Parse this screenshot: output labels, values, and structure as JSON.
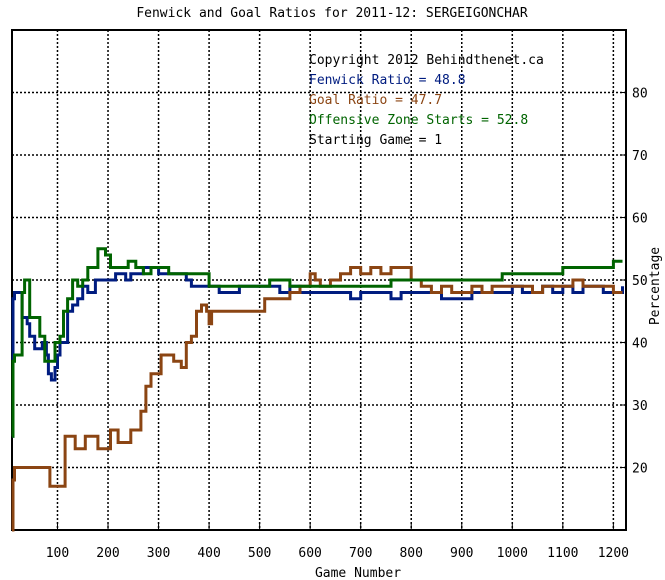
{
  "chart_data": {
    "type": "line",
    "title": "Fenwick and Goal Ratios for 2011-12: SERGEIGONCHAR",
    "xlabel": "Game Number",
    "ylabel": "Percentage",
    "xlim": [
      10,
      1225
    ],
    "ylim": [
      10,
      90
    ],
    "x_ticks": [
      100,
      200,
      300,
      400,
      500,
      600,
      700,
      800,
      900,
      1000,
      1100,
      1200
    ],
    "y_ticks": [
      20,
      30,
      40,
      50,
      60,
      70,
      80
    ],
    "grid": true,
    "annotations": [
      {
        "text": "Copyright 2012 Behindthenet.ca",
        "color": "#000000"
      },
      {
        "text": "Fenwick Ratio = 48.8",
        "color": "#001c80"
      },
      {
        "text": "Goal Ratio = 47.7",
        "color": "#8b4513"
      },
      {
        "text": "Offensive Zone Starts = 52.8",
        "color": "#006400"
      },
      {
        "text": "Starting Game = 1",
        "color": "#000000"
      }
    ],
    "series": [
      {
        "name": "Fenwick Ratio",
        "color": "#001c80",
        "points": [
          [
            10,
            25
          ],
          [
            12,
            47
          ],
          [
            15,
            48
          ],
          [
            25,
            48
          ],
          [
            30,
            44
          ],
          [
            40,
            43
          ],
          [
            45,
            41
          ],
          [
            55,
            39
          ],
          [
            65,
            39
          ],
          [
            70,
            40
          ],
          [
            78,
            38
          ],
          [
            82,
            35
          ],
          [
            88,
            34
          ],
          [
            95,
            36
          ],
          [
            100,
            38
          ],
          [
            105,
            40
          ],
          [
            112,
            40
          ],
          [
            120,
            45
          ],
          [
            130,
            46
          ],
          [
            140,
            47
          ],
          [
            150,
            49
          ],
          [
            160,
            48
          ],
          [
            170,
            48
          ],
          [
            175,
            50
          ],
          [
            185,
            50
          ],
          [
            195,
            50
          ],
          [
            205,
            50
          ],
          [
            215,
            51
          ],
          [
            225,
            51
          ],
          [
            235,
            50
          ],
          [
            245,
            51
          ],
          [
            260,
            51
          ],
          [
            270,
            52
          ],
          [
            285,
            52
          ],
          [
            300,
            51
          ],
          [
            320,
            51
          ],
          [
            340,
            51
          ],
          [
            355,
            50
          ],
          [
            365,
            49
          ],
          [
            380,
            49
          ],
          [
            400,
            49
          ],
          [
            420,
            48
          ],
          [
            440,
            48
          ],
          [
            460,
            49
          ],
          [
            480,
            49
          ],
          [
            500,
            49
          ],
          [
            520,
            49
          ],
          [
            540,
            48
          ],
          [
            560,
            49
          ],
          [
            580,
            48
          ],
          [
            600,
            48
          ],
          [
            620,
            48
          ],
          [
            640,
            48
          ],
          [
            660,
            48
          ],
          [
            680,
            47
          ],
          [
            700,
            48
          ],
          [
            720,
            48
          ],
          [
            740,
            48
          ],
          [
            760,
            47
          ],
          [
            780,
            48
          ],
          [
            800,
            48
          ],
          [
            820,
            48
          ],
          [
            840,
            48
          ],
          [
            860,
            47
          ],
          [
            880,
            47
          ],
          [
            900,
            47
          ],
          [
            920,
            48
          ],
          [
            940,
            48
          ],
          [
            960,
            48
          ],
          [
            980,
            48
          ],
          [
            1000,
            49
          ],
          [
            1020,
            48
          ],
          [
            1040,
            48
          ],
          [
            1060,
            49
          ],
          [
            1080,
            48
          ],
          [
            1100,
            49
          ],
          [
            1120,
            48
          ],
          [
            1140,
            49
          ],
          [
            1160,
            49
          ],
          [
            1180,
            48
          ],
          [
            1200,
            48
          ],
          [
            1218,
            49
          ]
        ]
      },
      {
        "name": "Goal Ratio",
        "color": "#8b4513",
        "points": [
          [
            10,
            10
          ],
          [
            12,
            18
          ],
          [
            15,
            20
          ],
          [
            30,
            20
          ],
          [
            50,
            20
          ],
          [
            60,
            20
          ],
          [
            75,
            20
          ],
          [
            85,
            17
          ],
          [
            100,
            17
          ],
          [
            110,
            17
          ],
          [
            115,
            25
          ],
          [
            125,
            25
          ],
          [
            135,
            23
          ],
          [
            145,
            23
          ],
          [
            155,
            25
          ],
          [
            170,
            25
          ],
          [
            180,
            23
          ],
          [
            195,
            23
          ],
          [
            205,
            26
          ],
          [
            220,
            24
          ],
          [
            235,
            24
          ],
          [
            245,
            26
          ],
          [
            255,
            26
          ],
          [
            265,
            29
          ],
          [
            275,
            33
          ],
          [
            285,
            35
          ],
          [
            295,
            35
          ],
          [
            305,
            38
          ],
          [
            315,
            38
          ],
          [
            330,
            37
          ],
          [
            345,
            36
          ],
          [
            355,
            40
          ],
          [
            365,
            41
          ],
          [
            375,
            45
          ],
          [
            385,
            46
          ],
          [
            395,
            45
          ],
          [
            400,
            43
          ],
          [
            405,
            45
          ],
          [
            420,
            45
          ],
          [
            440,
            45
          ],
          [
            460,
            45
          ],
          [
            480,
            45
          ],
          [
            500,
            45
          ],
          [
            510,
            47
          ],
          [
            520,
            47
          ],
          [
            540,
            47
          ],
          [
            560,
            48
          ],
          [
            580,
            49
          ],
          [
            600,
            51
          ],
          [
            610,
            50
          ],
          [
            620,
            49
          ],
          [
            640,
            50
          ],
          [
            660,
            51
          ],
          [
            680,
            52
          ],
          [
            700,
            51
          ],
          [
            720,
            52
          ],
          [
            740,
            51
          ],
          [
            760,
            52
          ],
          [
            780,
            52
          ],
          [
            800,
            50
          ],
          [
            820,
            49
          ],
          [
            840,
            48
          ],
          [
            860,
            49
          ],
          [
            880,
            48
          ],
          [
            900,
            48
          ],
          [
            920,
            49
          ],
          [
            940,
            48
          ],
          [
            960,
            49
          ],
          [
            980,
            49
          ],
          [
            1000,
            49
          ],
          [
            1020,
            49
          ],
          [
            1040,
            48
          ],
          [
            1060,
            49
          ],
          [
            1080,
            49
          ],
          [
            1100,
            49
          ],
          [
            1120,
            50
          ],
          [
            1140,
            49
          ],
          [
            1160,
            49
          ],
          [
            1180,
            49
          ],
          [
            1200,
            48
          ],
          [
            1218,
            48
          ]
        ]
      },
      {
        "name": "Offensive Zone Starts",
        "color": "#006400",
        "points": [
          [
            10,
            25
          ],
          [
            12,
            37
          ],
          [
            15,
            38
          ],
          [
            25,
            38
          ],
          [
            30,
            48
          ],
          [
            35,
            50
          ],
          [
            45,
            44
          ],
          [
            55,
            44
          ],
          [
            65,
            41
          ],
          [
            75,
            37
          ],
          [
            85,
            37
          ],
          [
            95,
            40
          ],
          [
            105,
            41
          ],
          [
            112,
            45
          ],
          [
            120,
            47
          ],
          [
            130,
            50
          ],
          [
            140,
            49
          ],
          [
            150,
            50
          ],
          [
            160,
            52
          ],
          [
            170,
            52
          ],
          [
            180,
            55
          ],
          [
            195,
            54
          ],
          [
            205,
            52
          ],
          [
            220,
            52
          ],
          [
            240,
            53
          ],
          [
            255,
            52
          ],
          [
            270,
            51
          ],
          [
            285,
            52
          ],
          [
            300,
            52
          ],
          [
            320,
            51
          ],
          [
            340,
            51
          ],
          [
            360,
            51
          ],
          [
            375,
            51
          ],
          [
            390,
            51
          ],
          [
            400,
            49
          ],
          [
            420,
            49
          ],
          [
            440,
            49
          ],
          [
            460,
            49
          ],
          [
            480,
            49
          ],
          [
            500,
            49
          ],
          [
            520,
            50
          ],
          [
            540,
            50
          ],
          [
            560,
            49
          ],
          [
            580,
            49
          ],
          [
            600,
            49
          ],
          [
            620,
            49
          ],
          [
            640,
            49
          ],
          [
            660,
            49
          ],
          [
            680,
            49
          ],
          [
            700,
            49
          ],
          [
            720,
            49
          ],
          [
            740,
            49
          ],
          [
            760,
            50
          ],
          [
            780,
            50
          ],
          [
            800,
            50
          ],
          [
            820,
            50
          ],
          [
            840,
            50
          ],
          [
            860,
            50
          ],
          [
            880,
            50
          ],
          [
            900,
            50
          ],
          [
            920,
            50
          ],
          [
            940,
            50
          ],
          [
            960,
            50
          ],
          [
            980,
            51
          ],
          [
            1000,
            51
          ],
          [
            1020,
            51
          ],
          [
            1040,
            51
          ],
          [
            1060,
            51
          ],
          [
            1080,
            51
          ],
          [
            1100,
            52
          ],
          [
            1120,
            52
          ],
          [
            1140,
            52
          ],
          [
            1160,
            52
          ],
          [
            1180,
            52
          ],
          [
            1200,
            53
          ],
          [
            1218,
            53
          ]
        ]
      }
    ]
  }
}
